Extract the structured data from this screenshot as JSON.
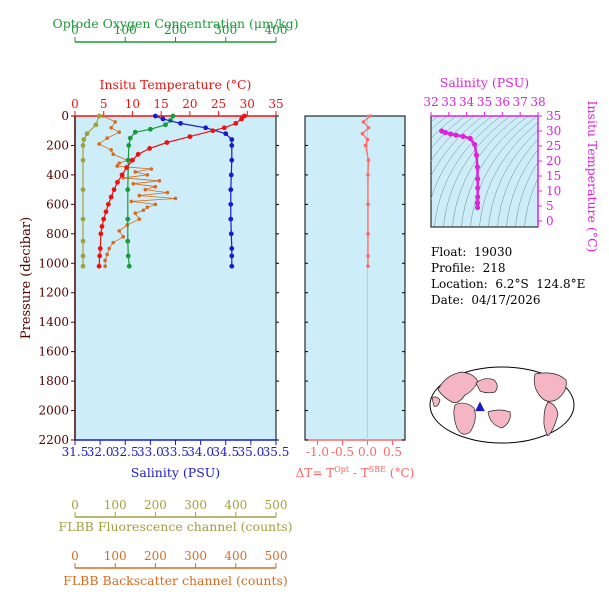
{
  "colors": {
    "oxygen": "#1a9a3a",
    "temperature": "#ee1111",
    "salinity": "#1a1acc",
    "delta_t": "#ff6666",
    "fluorescence": "#a0a040",
    "backscatter": "#d86a20",
    "ts_diagram": "#dd22dd",
    "panel_bg": "#cdeef8",
    "axis": "#000000",
    "pressure_label": "#550000"
  },
  "chart_data": [
    {
      "type": "line",
      "panel": "main-profile",
      "ylabel": "Pressure (decibar)",
      "yticks": [
        "0",
        "200",
        "400",
        "600",
        "800",
        "1000",
        "1200",
        "1400",
        "1600",
        "1800",
        "2000",
        "2200"
      ],
      "ylim": [
        0,
        2200
      ],
      "y_reversed": true,
      "axes": {
        "oxygen": {
          "label": "Optode Oxygen Concentration (μm/kg)",
          "ticks": [
            "0",
            "100",
            "200",
            "300",
            "400"
          ],
          "range": [
            0,
            400
          ]
        },
        "temperature": {
          "label": "Insitu Temperature (°C)",
          "ticks": [
            "0",
            "5",
            "10",
            "15",
            "20",
            "25",
            "30",
            "35"
          ],
          "range": [
            0,
            35
          ]
        },
        "salinity": {
          "label": "Salinity (PSU)",
          "ticks": [
            "31.5",
            "32.0",
            "32.5",
            "33.0",
            "33.5",
            "34.0",
            "34.5",
            "35.0",
            "35.5"
          ],
          "range": [
            31.5,
            35.5
          ]
        },
        "fluorescence": {
          "label": "FLBB Fluorescence channel (counts)",
          "ticks": [
            "0",
            "100",
            "200",
            "300",
            "400",
            "500"
          ],
          "range": [
            0,
            500
          ]
        },
        "backscatter": {
          "label": "FLBB Backscatter channel (counts)",
          "ticks": [
            "0",
            "100",
            "200",
            "300",
            "400",
            "500"
          ],
          "range": [
            0,
            500
          ]
        }
      },
      "series": [
        {
          "name": "Temperature",
          "x": [
            29.5,
            29.0,
            28.0,
            26.0,
            24.0,
            20.0,
            16.0,
            13.0,
            11.0,
            10.0,
            9.0,
            8.2,
            7.4,
            6.8,
            6.3,
            5.8,
            5.4,
            5.0,
            4.7,
            4.5,
            4.4,
            4.3,
            4.2
          ],
          "y": [
            0,
            20,
            50,
            80,
            100,
            140,
            180,
            220,
            260,
            300,
            350,
            400,
            450,
            500,
            550,
            600,
            650,
            700,
            750,
            800,
            900,
            950,
            1020
          ]
        },
        {
          "name": "Salinity",
          "x": [
            33.1,
            33.25,
            33.6,
            34.1,
            34.5,
            34.62,
            34.62,
            34.62,
            34.61,
            34.6,
            34.6,
            34.6,
            34.61,
            34.62,
            34.62,
            34.62
          ],
          "y": [
            0,
            20,
            50,
            80,
            120,
            160,
            200,
            300,
            400,
            500,
            600,
            700,
            800,
            900,
            950,
            1020
          ]
        },
        {
          "name": "Oxygen",
          "x": [
            195,
            190,
            180,
            150,
            120,
            110,
            107,
            106,
            105,
            105,
            105,
            106,
            108
          ],
          "y": [
            0,
            30,
            60,
            90,
            110,
            150,
            200,
            300,
            500,
            700,
            850,
            950,
            1020
          ]
        },
        {
          "name": "Fluorescence",
          "x": [
            60,
            52,
            30,
            22,
            20,
            20,
            20,
            20,
            20,
            20,
            20
          ],
          "y": [
            0,
            60,
            120,
            160,
            200,
            300,
            500,
            700,
            850,
            950,
            1020
          ]
        },
        {
          "name": "Backscatter",
          "x": [
            70,
            100,
            90,
            110,
            80,
            60,
            90,
            95,
            130,
            110,
            105,
            190,
            150,
            180,
            120,
            210,
            145,
            200,
            175,
            230,
            160,
            250,
            140,
            200,
            180,
            170,
            150,
            160,
            130,
            110,
            120,
            95,
            85,
            80,
            75,
            75
          ],
          "y": [
            0,
            40,
            80,
            110,
            150,
            190,
            230,
            260,
            300,
            320,
            340,
            360,
            380,
            400,
            420,
            440,
            460,
            480,
            500,
            520,
            540,
            560,
            580,
            600,
            620,
            640,
            660,
            700,
            740,
            780,
            820,
            860,
            900,
            940,
            980,
            1020
          ]
        }
      ]
    },
    {
      "type": "line",
      "panel": "delta-t",
      "xlabel_main": "ΔT= T",
      "xlabel_sup1": "Opt",
      "xlabel_mid": " - T",
      "xlabel_sup2": "SBE",
      "xlabel_unit": " (°C)",
      "xticks": [
        "-1.0",
        "-0.5",
        "0.0",
        "0.5"
      ],
      "xlim": [
        -1.25,
        0.75
      ],
      "series": [
        {
          "name": "ΔT",
          "x": [
            0.05,
            -0.08,
            0.02,
            -0.1,
            0.0,
            -0.04,
            0.02,
            0.01,
            0.01,
            0.01,
            0.01,
            0.01
          ],
          "y": [
            0,
            40,
            80,
            120,
            160,
            200,
            300,
            400,
            600,
            800,
            950,
            1020
          ]
        }
      ]
    },
    {
      "type": "scatter",
      "panel": "ts-diagram",
      "title": "Salinity (PSU)",
      "ylabel": "Insitu Temperature (°C)",
      "xticks": [
        "32",
        "33",
        "34",
        "35",
        "36",
        "37",
        "38"
      ],
      "xlim": [
        32,
        38
      ],
      "yticks": [
        "0",
        "5",
        "10",
        "15",
        "20",
        "25",
        "30",
        "35"
      ],
      "ylim": [
        -2,
        35
      ],
      "series": [
        {
          "name": "T-S",
          "x": [
            32.6,
            32.8,
            33.1,
            33.4,
            33.8,
            34.2,
            34.45,
            34.55,
            34.6,
            34.62,
            34.62,
            34.62,
            34.61,
            34.61
          ],
          "y": [
            30.0,
            29.5,
            29.0,
            28.6,
            28.2,
            27.5,
            25.5,
            22.0,
            18.0,
            14.0,
            11.0,
            8.0,
            6.0,
            4.5
          ]
        }
      ]
    }
  ],
  "info": {
    "float_line": "Float:  19030",
    "profile_line": "Profile:  218",
    "location_line": "Location:  6.2°S  124.8°E",
    "date_line": "Date:  04/17/2026"
  },
  "map": {
    "marker_lon": 124.8,
    "marker_lat": -6.2
  }
}
